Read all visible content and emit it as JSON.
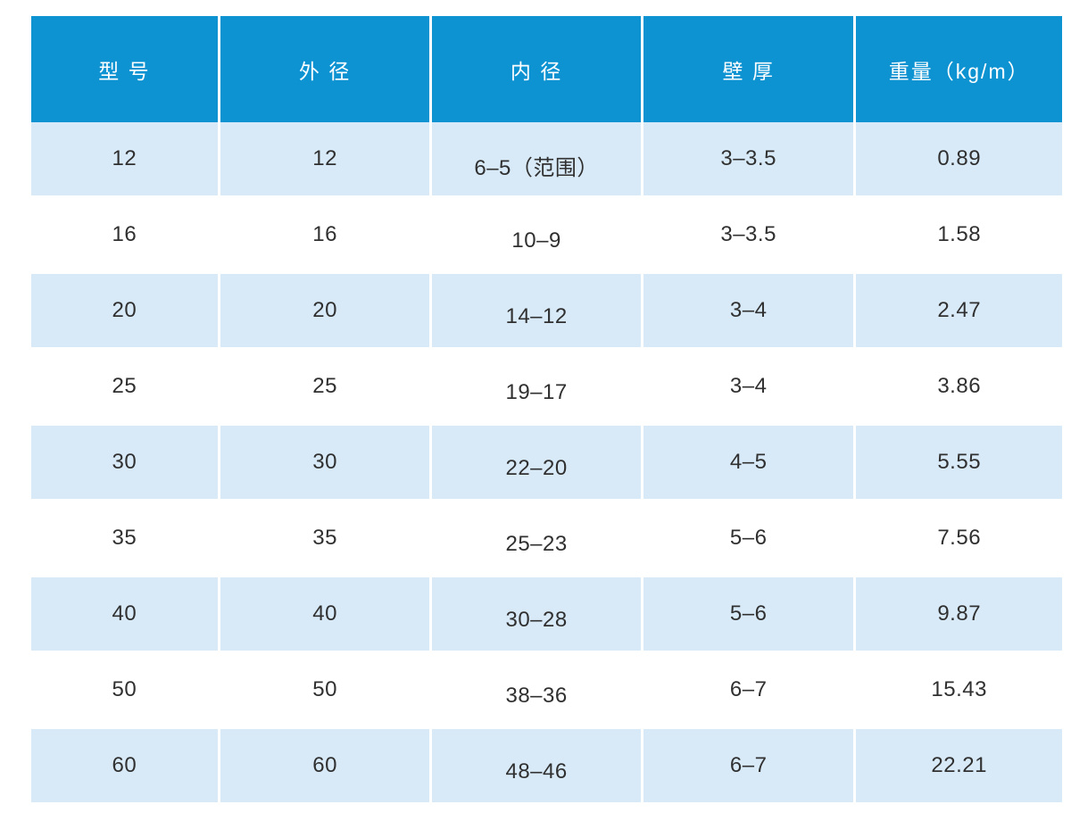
{
  "colors": {
    "header_bg": "#0e93d2",
    "row_alt_bg": "#d8eaf8",
    "row_plain_bg": "#ffffff",
    "header_text": "#ffffff",
    "cell_text": "#303030"
  },
  "table": {
    "columns": [
      {
        "label": "型 号"
      },
      {
        "label": "外 径"
      },
      {
        "label": "内 径"
      },
      {
        "label": "壁 厚"
      },
      {
        "label": "重量（kg/m）"
      }
    ],
    "rows": [
      [
        "12",
        "12",
        "6–5（范围）",
        "3–3.5",
        "0.89"
      ],
      [
        "16",
        "16",
        "10–9",
        "3–3.5",
        "1.58"
      ],
      [
        "20",
        "20",
        "14–12",
        "3–4",
        "2.47"
      ],
      [
        "25",
        "25",
        "19–17",
        "3–4",
        "3.86"
      ],
      [
        "30",
        "30",
        "22–20",
        "4–5",
        "5.55"
      ],
      [
        "35",
        "35",
        "25–23",
        "5–6",
        "7.56"
      ],
      [
        "40",
        "40",
        "30–28",
        "5–6",
        "9.87"
      ],
      [
        "50",
        "50",
        "38–36",
        "6–7",
        "15.43"
      ],
      [
        "60",
        "60",
        "48–46",
        "6–7",
        "22.21"
      ]
    ]
  },
  "chart_data": {
    "type": "table",
    "title": "",
    "columns": [
      "型 号",
      "外 径",
      "内 径",
      "壁 厚",
      "重量（kg/m）"
    ],
    "rows": [
      [
        "12",
        "12",
        "6–5（范围）",
        "3–3.5",
        "0.89"
      ],
      [
        "16",
        "16",
        "10–9",
        "3–3.5",
        "1.58"
      ],
      [
        "20",
        "20",
        "14–12",
        "3–4",
        "2.47"
      ],
      [
        "25",
        "25",
        "19–17",
        "3–4",
        "3.86"
      ],
      [
        "30",
        "30",
        "22–20",
        "4–5",
        "5.55"
      ],
      [
        "35",
        "35",
        "25–23",
        "5–6",
        "7.56"
      ],
      [
        "40",
        "40",
        "30–28",
        "5–6",
        "9.87"
      ],
      [
        "50",
        "50",
        "38–36",
        "6–7",
        "15.43"
      ],
      [
        "60",
        "60",
        "48–46",
        "6–7",
        "22.21"
      ]
    ],
    "notes": "Pipe specification table: model, outer diameter, inner diameter (range), wall thickness, weight kg/m",
    "layout": "alternating light-blue/white rows, solid azure header"
  }
}
